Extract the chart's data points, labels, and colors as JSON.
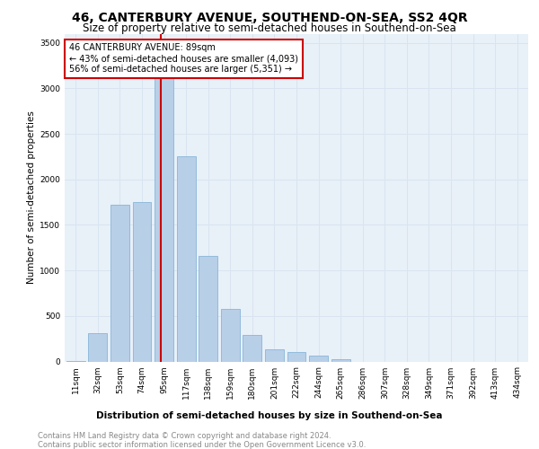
{
  "title": "46, CANTERBURY AVENUE, SOUTHEND-ON-SEA, SS2 4QR",
  "subtitle": "Size of property relative to semi-detached houses in Southend-on-Sea",
  "xlabel": "Distribution of semi-detached houses by size in Southend-on-Sea",
  "ylabel": "Number of semi-detached properties",
  "footnote1": "Contains HM Land Registry data © Crown copyright and database right 2024.",
  "footnote2": "Contains public sector information licensed under the Open Government Licence v3.0.",
  "annotation_line1": "46 CANTERBURY AVENUE: 89sqm",
  "annotation_line2": "← 43% of semi-detached houses are smaller (4,093)",
  "annotation_line3": "56% of semi-detached houses are larger (5,351) →",
  "categories": [
    "11sqm",
    "32sqm",
    "53sqm",
    "74sqm",
    "95sqm",
    "117sqm",
    "138sqm",
    "159sqm",
    "180sqm",
    "201sqm",
    "222sqm",
    "244sqm",
    "265sqm",
    "286sqm",
    "307sqm",
    "328sqm",
    "349sqm",
    "371sqm",
    "392sqm",
    "413sqm",
    "434sqm"
  ],
  "values": [
    5,
    310,
    1720,
    1750,
    3450,
    2250,
    1160,
    580,
    290,
    130,
    100,
    60,
    25,
    0,
    0,
    0,
    0,
    0,
    0,
    0,
    0
  ],
  "bar_color": "#b8cfe8",
  "bar_edge_color": "#7aadd4",
  "vline_color": "#cc0000",
  "annotation_box_color": "#cc0000",
  "ylim": [
    0,
    3600
  ],
  "yticks": [
    0,
    500,
    1000,
    1500,
    2000,
    2500,
    3000,
    3500
  ],
  "grid_color": "#d8e4f0",
  "bg_color": "#e8f0f8",
  "title_fontsize": 10,
  "subtitle_fontsize": 8.5,
  "ylabel_fontsize": 7.5,
  "xlabel_fontsize": 7.5,
  "tick_fontsize": 6.5,
  "annotation_fontsize": 7,
  "footnote_fontsize": 6
}
